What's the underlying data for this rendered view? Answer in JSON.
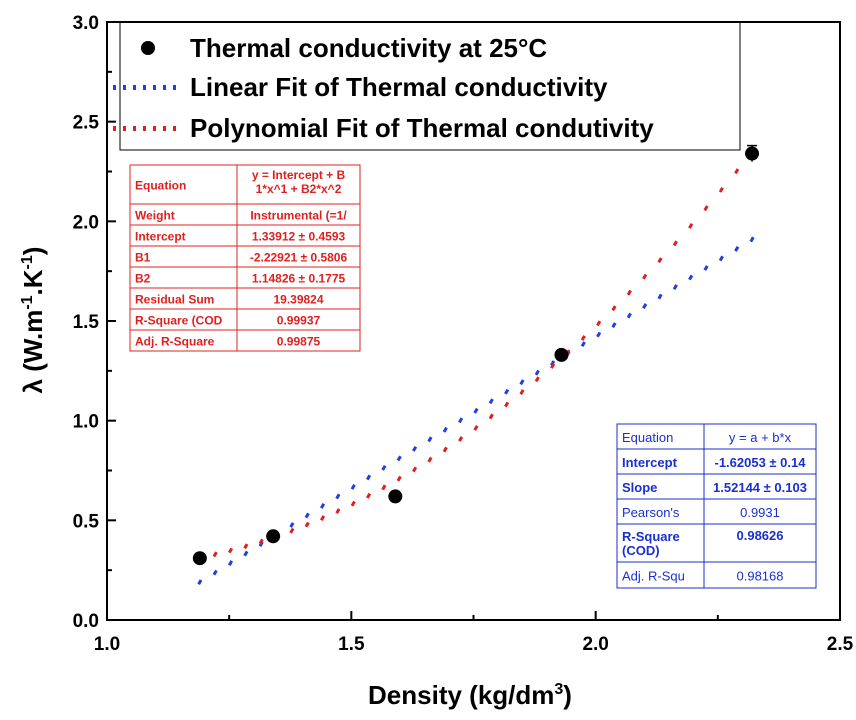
{
  "chart_data": {
    "type": "scatter",
    "xlabel": "Density (kg/dm",
    "xlabel_sup": "3",
    "xlabel_close": ")",
    "ylabel": "λ (W.m",
    "ylabel_sup1": "-1",
    "ylabel_mid": ".K",
    "ylabel_sup2": "-1",
    "ylabel_close": ")",
    "xlim": [
      1.0,
      2.5
    ],
    "ylim": [
      0.0,
      3.0
    ],
    "x_ticks": [
      "1.0",
      "1.5",
      "2.0",
      "2.5"
    ],
    "y_ticks": [
      "0.0",
      "0.5",
      "1.0",
      "1.5",
      "2.0",
      "2.5",
      "3.0"
    ],
    "grid": false,
    "legend_position": "top",
    "legend": [
      {
        "label": "Thermal conductivity at 25°C",
        "marker": "circle",
        "color": "#000000"
      },
      {
        "label": "Linear Fit of Thermal conductivity",
        "marker": "dotted-line",
        "color": "#1f3fe0"
      },
      {
        "label": "Polynomial Fit of Thermal condutivity",
        "marker": "dotted-line",
        "color": "#e0201f"
      }
    ],
    "series": [
      {
        "name": "Thermal conductivity at 25°C",
        "kind": "points",
        "color": "#000000",
        "x": [
          1.19,
          1.34,
          1.59,
          1.93,
          2.32
        ],
        "y": [
          0.31,
          0.42,
          0.62,
          1.33,
          2.34
        ],
        "error": [
          0.02,
          0.02,
          0.02,
          0.02,
          0.04
        ]
      },
      {
        "name": "Linear Fit of Thermal conductivity",
        "kind": "fit",
        "color": "#1f3fe0",
        "equation": {
          "a": -1.62053,
          "b": 1.52144
        },
        "x_range": [
          1.19,
          2.32
        ]
      },
      {
        "name": "Polynomial Fit of Thermal condutivity",
        "kind": "fit",
        "color": "#e0201f",
        "equation": {
          "intercept": 1.33912,
          "b1": -2.22921,
          "b2": 1.14826
        },
        "x_range": [
          1.19,
          2.32
        ]
      }
    ],
    "tables": {
      "polynomial": {
        "color": "#e0201f",
        "rows": [
          [
            "Equation",
            "y = Intercept + B",
            "1*x^1 + B2*x^2"
          ],
          [
            "Weight",
            "Instrumental (=1/",
            ""
          ],
          [
            "Intercept",
            "1.33912 ± 0.4593",
            ""
          ],
          [
            "B1",
            "-2.22921 ± 0.5806",
            ""
          ],
          [
            "B2",
            "1.14826 ± 0.1775",
            ""
          ],
          [
            "Residual Sum",
            "19.39824",
            ""
          ],
          [
            "R-Square (COD",
            "0.99937",
            ""
          ],
          [
            "Adj. R-Square",
            "0.99875",
            ""
          ]
        ]
      },
      "linear": {
        "color": "#1a2fd0",
        "rows": [
          [
            "Equation",
            "y = a + b*x",
            ""
          ],
          [
            "Intercept",
            "-1.62053 ± 0.14",
            ""
          ],
          [
            "Slope",
            "1.52144 ± 0.103",
            ""
          ],
          [
            "Pearson's",
            "0.9931",
            ""
          ],
          [
            "R-Square",
            "0.98626",
            "(COD)"
          ],
          [
            "Adj. R-Squ",
            "0.98168",
            ""
          ]
        ]
      }
    }
  }
}
